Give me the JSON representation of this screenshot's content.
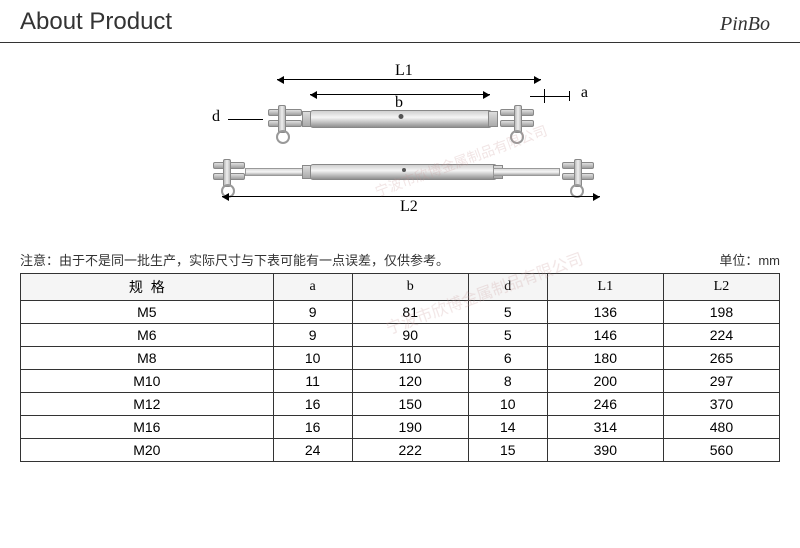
{
  "header": {
    "title": "About Product",
    "brand": "PinBo"
  },
  "diagram": {
    "labels": {
      "L1": "L1",
      "L2": "L2",
      "a": "a",
      "b": "b",
      "d": "d"
    },
    "watermark": "宁波市欣博金属制品有限公司"
  },
  "notes": {
    "prefix": "注意：",
    "text": "由于不是同一批生产，实际尺寸与下表可能有一点误差，仅供参考。",
    "unit_label": "单位：",
    "unit_value": "mm"
  },
  "table": {
    "columns": [
      "规格",
      "a",
      "b",
      "d",
      "L1",
      "L2"
    ],
    "rows": [
      [
        "M5",
        "9",
        "81",
        "5",
        "136",
        "198"
      ],
      [
        "M6",
        "9",
        "90",
        "5",
        "146",
        "224"
      ],
      [
        "M8",
        "10",
        "110",
        "6",
        "180",
        "265"
      ],
      [
        "M10",
        "11",
        "120",
        "8",
        "200",
        "297"
      ],
      [
        "M12",
        "16",
        "150",
        "10",
        "246",
        "370"
      ],
      [
        "M16",
        "16",
        "190",
        "14",
        "314",
        "480"
      ],
      [
        "M20",
        "24",
        "222",
        "15",
        "390",
        "560"
      ]
    ],
    "col_widths_pct": [
      16.6,
      16.6,
      16.7,
      16.7,
      16.7,
      16.7
    ],
    "border_color": "#333333",
    "header_bg": "#f5f5f5",
    "fontsize_pt": 14
  },
  "colors": {
    "background": "#ffffff",
    "text": "#333333",
    "rule": "#333333"
  }
}
